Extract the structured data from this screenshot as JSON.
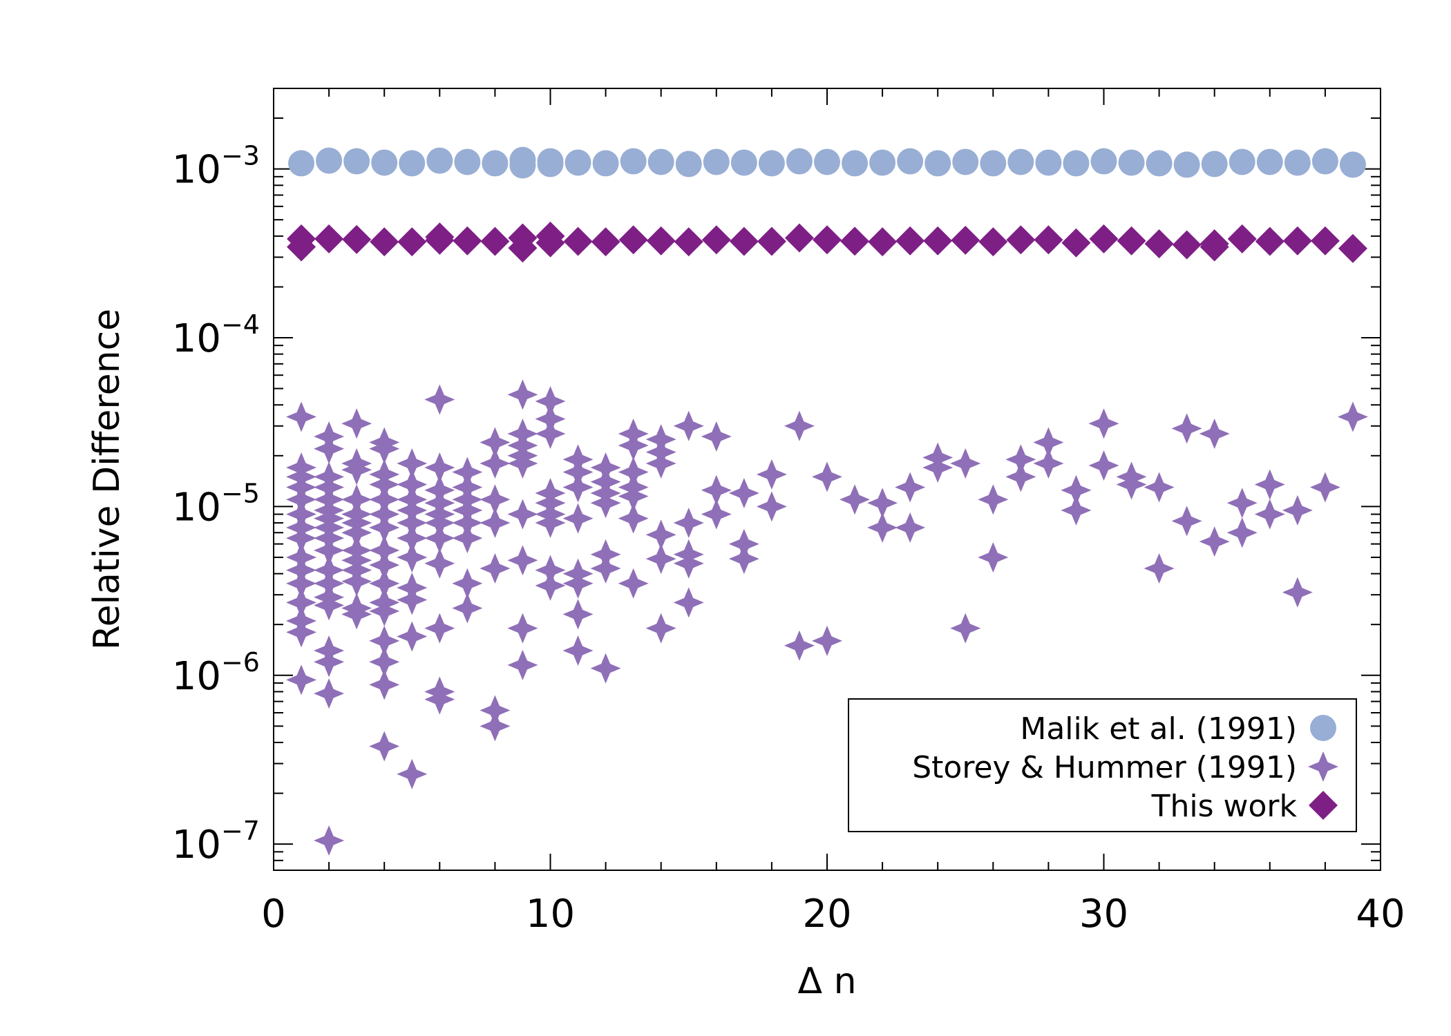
{
  "chart_data": {
    "type": "scatter",
    "title": "",
    "xlabel": "Δ n",
    "ylabel": "Relative Difference",
    "xlim": [
      0,
      40
    ],
    "ylim": [
      7e-08,
      0.003
    ],
    "yscale": "log",
    "x_ticks": [
      0,
      10,
      20,
      30,
      40
    ],
    "y_ticks": [
      {
        "value": 1e-07,
        "base": "10",
        "exp": "−7"
      },
      {
        "value": 1e-06,
        "base": "10",
        "exp": "−6"
      },
      {
        "value": 1e-05,
        "base": "10",
        "exp": "−5"
      },
      {
        "value": 0.0001,
        "base": "10",
        "exp": "−4"
      },
      {
        "value": 0.001,
        "base": "10",
        "exp": "−3"
      }
    ],
    "legend_position": "bottom-right",
    "series": [
      {
        "name": "Malik et al. (1991)",
        "marker": "circle",
        "color": "#98AED4",
        "points": [
          [
            1,
            0.00108
          ],
          [
            2,
            0.00112
          ],
          [
            3,
            0.00111
          ],
          [
            4,
            0.00109
          ],
          [
            5,
            0.00108
          ],
          [
            6,
            0.00112
          ],
          [
            7,
            0.0011
          ],
          [
            8,
            0.00108
          ],
          [
            9,
            0.00105
          ],
          [
            9,
            0.00113
          ],
          [
            10,
            0.00111
          ],
          [
            10,
            0.00107
          ],
          [
            11,
            0.00109
          ],
          [
            12,
            0.00108
          ],
          [
            13,
            0.00111
          ],
          [
            14,
            0.0011
          ],
          [
            15,
            0.00107
          ],
          [
            16,
            0.0011
          ],
          [
            17,
            0.00109
          ],
          [
            18,
            0.00108
          ],
          [
            19,
            0.00111
          ],
          [
            20,
            0.0011
          ],
          [
            21,
            0.00108
          ],
          [
            22,
            0.00109
          ],
          [
            23,
            0.00111
          ],
          [
            24,
            0.00108
          ],
          [
            25,
            0.0011
          ],
          [
            26,
            0.00108
          ],
          [
            27,
            0.0011
          ],
          [
            28,
            0.00109
          ],
          [
            29,
            0.00108
          ],
          [
            30,
            0.00111
          ],
          [
            31,
            0.00109
          ],
          [
            32,
            0.00108
          ],
          [
            33,
            0.00106
          ],
          [
            34,
            0.00107
          ],
          [
            35,
            0.0011
          ],
          [
            36,
            0.0011
          ],
          [
            37,
            0.00109
          ],
          [
            38,
            0.00111
          ],
          [
            39,
            0.00106
          ]
        ]
      },
      {
        "name": "Storey & Hummer (1991)",
        "marker": "star",
        "color": "#8F6FB7",
        "points": [
          [
            1,
            3.4e-05
          ],
          [
            1,
            1.7e-05
          ],
          [
            1,
            1.5e-05
          ],
          [
            1,
            1.3e-05
          ],
          [
            1,
            1.1e-05
          ],
          [
            1,
            9e-06
          ],
          [
            1,
            7.5e-06
          ],
          [
            1,
            6.5e-06
          ],
          [
            1,
            5e-06
          ],
          [
            1,
            4.2e-06
          ],
          [
            1,
            3.5e-06
          ],
          [
            1,
            2.7e-06
          ],
          [
            1,
            2.1e-06
          ],
          [
            1,
            1.8e-06
          ],
          [
            1,
            9.4e-07
          ],
          [
            2,
            2.6e-05
          ],
          [
            2,
            2.2e-05
          ],
          [
            2,
            1.5e-05
          ],
          [
            2,
            1.3e-05
          ],
          [
            2,
            1.1e-05
          ],
          [
            2,
            9.5e-06
          ],
          [
            2,
            8.5e-06
          ],
          [
            2,
            7.5e-06
          ],
          [
            2,
            6.5e-06
          ],
          [
            2,
            5.5e-06
          ],
          [
            2,
            4.2e-06
          ],
          [
            2,
            3.5e-06
          ],
          [
            2,
            2.9e-06
          ],
          [
            2,
            2.6e-06
          ],
          [
            2,
            1.4e-06
          ],
          [
            2,
            1.2e-06
          ],
          [
            2,
            7.8e-07
          ],
          [
            2,
            1.05e-07
          ],
          [
            3,
            3.1e-05
          ],
          [
            3,
            1.8e-05
          ],
          [
            3,
            1.65e-05
          ],
          [
            3,
            1.1e-05
          ],
          [
            3,
            9e-06
          ],
          [
            3,
            8e-06
          ],
          [
            3,
            7e-06
          ],
          [
            3,
            5.5e-06
          ],
          [
            3,
            4.8e-06
          ],
          [
            3,
            4.2e-06
          ],
          [
            3,
            3.6e-06
          ],
          [
            3,
            2.5e-06
          ],
          [
            3,
            2.3e-06
          ],
          [
            4,
            2.4e-05
          ],
          [
            4,
            2.2e-05
          ],
          [
            4,
            1.55e-05
          ],
          [
            4,
            1.35e-05
          ],
          [
            4,
            1.1e-05
          ],
          [
            4,
            9e-06
          ],
          [
            4,
            7.5e-06
          ],
          [
            4,
            5.5e-06
          ],
          [
            4,
            4.5e-06
          ],
          [
            4,
            3.5e-06
          ],
          [
            4,
            2.7e-06
          ],
          [
            4,
            2.4e-06
          ],
          [
            4,
            1.6e-06
          ],
          [
            4,
            1.2e-06
          ],
          [
            4,
            8.8e-07
          ],
          [
            4,
            3.8e-07
          ],
          [
            5,
            1.8e-05
          ],
          [
            5,
            1.35e-05
          ],
          [
            5,
            1.1e-05
          ],
          [
            5,
            9.5e-06
          ],
          [
            5,
            8e-06
          ],
          [
            5,
            6.5e-06
          ],
          [
            5,
            5e-06
          ],
          [
            5,
            3.3e-06
          ],
          [
            5,
            2.8e-06
          ],
          [
            5,
            1.7e-06
          ],
          [
            5,
            2.6e-07
          ],
          [
            6,
            4.3e-05
          ],
          [
            6,
            1.7e-05
          ],
          [
            6,
            1.25e-05
          ],
          [
            6,
            1.05e-05
          ],
          [
            6,
            9e-06
          ],
          [
            6,
            8e-06
          ],
          [
            6,
            6.5e-06
          ],
          [
            6,
            4.6e-06
          ],
          [
            6,
            1.9e-06
          ],
          [
            6,
            8e-07
          ],
          [
            6,
            7.2e-07
          ],
          [
            7,
            1.6e-05
          ],
          [
            7,
            1.3e-05
          ],
          [
            7,
            1.1e-05
          ],
          [
            7,
            9.5e-06
          ],
          [
            7,
            8e-06
          ],
          [
            7,
            6.5e-06
          ],
          [
            7,
            3.5e-06
          ],
          [
            7,
            2.5e-06
          ],
          [
            8,
            2.4e-05
          ],
          [
            8,
            1.8e-05
          ],
          [
            8,
            1.1e-05
          ],
          [
            8,
            8e-06
          ],
          [
            8,
            4.3e-06
          ],
          [
            8,
            6.2e-07
          ],
          [
            8,
            5e-07
          ],
          [
            9,
            4.6e-05
          ],
          [
            9,
            2.7e-05
          ],
          [
            9,
            2.3e-05
          ],
          [
            9,
            2e-05
          ],
          [
            9,
            1.8e-05
          ],
          [
            9,
            9e-06
          ],
          [
            9,
            4.8e-06
          ],
          [
            9,
            1.9e-06
          ],
          [
            9,
            1.15e-06
          ],
          [
            10,
            4.2e-05
          ],
          [
            10,
            3.3e-05
          ],
          [
            10,
            2.7e-05
          ],
          [
            10,
            1.2e-05
          ],
          [
            10,
            1.05e-05
          ],
          [
            10,
            9e-06
          ],
          [
            10,
            8e-06
          ],
          [
            10,
            4.2e-06
          ],
          [
            10,
            3.4e-06
          ],
          [
            11,
            1.9e-05
          ],
          [
            11,
            1.6e-05
          ],
          [
            11,
            1.3e-05
          ],
          [
            11,
            8.5e-06
          ],
          [
            11,
            4e-06
          ],
          [
            11,
            3.5e-06
          ],
          [
            11,
            2.3e-06
          ],
          [
            11,
            1.4e-06
          ],
          [
            12,
            1.7e-05
          ],
          [
            12,
            1.4e-05
          ],
          [
            12,
            1.2e-05
          ],
          [
            12,
            1.05e-05
          ],
          [
            12,
            5.2e-06
          ],
          [
            12,
            4.3e-06
          ],
          [
            12,
            1.1e-06
          ],
          [
            13,
            2.7e-05
          ],
          [
            13,
            2.3e-05
          ],
          [
            13,
            1.6e-05
          ],
          [
            13,
            1.3e-05
          ],
          [
            13,
            1.15e-05
          ],
          [
            13,
            8.5e-06
          ],
          [
            13,
            3.5e-06
          ],
          [
            14,
            2.5e-05
          ],
          [
            14,
            2.1e-05
          ],
          [
            14,
            1.8e-05
          ],
          [
            14,
            6.8e-06
          ],
          [
            14,
            4.9e-06
          ],
          [
            14,
            1.9e-06
          ],
          [
            15,
            3e-05
          ],
          [
            15,
            8e-06
          ],
          [
            15,
            5.2e-06
          ],
          [
            15,
            4.6e-06
          ],
          [
            15,
            2.7e-06
          ],
          [
            16,
            2.6e-05
          ],
          [
            16,
            1.25e-05
          ],
          [
            16,
            9e-06
          ],
          [
            17,
            1.2e-05
          ],
          [
            17,
            6e-06
          ],
          [
            17,
            4.9e-06
          ],
          [
            18,
            1.55e-05
          ],
          [
            18,
            1e-05
          ],
          [
            19,
            3e-05
          ],
          [
            19,
            1.5e-06
          ],
          [
            20,
            1.5e-05
          ],
          [
            20,
            1.6e-06
          ],
          [
            21,
            1.1e-05
          ],
          [
            22,
            1.05e-05
          ],
          [
            22,
            7.5e-06
          ],
          [
            23,
            1.3e-05
          ],
          [
            23,
            7.5e-06
          ],
          [
            24,
            1.95e-05
          ],
          [
            24,
            1.7e-05
          ],
          [
            25,
            1.8e-05
          ],
          [
            25,
            1.9e-06
          ],
          [
            26,
            1.1e-05
          ],
          [
            26,
            5e-06
          ],
          [
            27,
            1.9e-05
          ],
          [
            27,
            1.5e-05
          ],
          [
            28,
            2.4e-05
          ],
          [
            28,
            1.8e-05
          ],
          [
            29,
            1.25e-05
          ],
          [
            29,
            9.5e-06
          ],
          [
            30,
            3.1e-05
          ],
          [
            30,
            1.75e-05
          ],
          [
            31,
            1.5e-05
          ],
          [
            31,
            1.35e-05
          ],
          [
            32,
            1.3e-05
          ],
          [
            32,
            4.3e-06
          ],
          [
            33,
            2.9e-05
          ],
          [
            33,
            8.2e-06
          ],
          [
            34,
            2.7e-05
          ],
          [
            34,
            6.2e-06
          ],
          [
            35,
            1.05e-05
          ],
          [
            35,
            7e-06
          ],
          [
            36,
            1.35e-05
          ],
          [
            36,
            9e-06
          ],
          [
            37,
            9.5e-06
          ],
          [
            37,
            3.1e-06
          ],
          [
            38,
            1.3e-05
          ],
          [
            39,
            3.4e-05
          ]
        ]
      },
      {
        "name": "This work",
        "marker": "diamond",
        "color": "#7E1F86",
        "points": [
          [
            1,
            0.000385
          ],
          [
            1,
            0.000345
          ],
          [
            2,
            0.000385
          ],
          [
            3,
            0.000382
          ],
          [
            4,
            0.00037
          ],
          [
            5,
            0.00037
          ],
          [
            6,
            0.000395
          ],
          [
            6,
            0.000378
          ],
          [
            7,
            0.000375
          ],
          [
            8,
            0.000372
          ],
          [
            9,
            0.00039
          ],
          [
            9,
            0.00034
          ],
          [
            10,
            0.0004
          ],
          [
            10,
            0.000365
          ],
          [
            11,
            0.000372
          ],
          [
            12,
            0.00037
          ],
          [
            13,
            0.00038
          ],
          [
            14,
            0.000375
          ],
          [
            15,
            0.00037
          ],
          [
            16,
            0.00038
          ],
          [
            17,
            0.000372
          ],
          [
            18,
            0.000372
          ],
          [
            19,
            0.00039
          ],
          [
            20,
            0.00038
          ],
          [
            21,
            0.000373
          ],
          [
            22,
            0.00037
          ],
          [
            23,
            0.000375
          ],
          [
            24,
            0.000375
          ],
          [
            25,
            0.000378
          ],
          [
            26,
            0.00037
          ],
          [
            27,
            0.00038
          ],
          [
            28,
            0.00038
          ],
          [
            29,
            0.000365
          ],
          [
            30,
            0.000385
          ],
          [
            31,
            0.000375
          ],
          [
            32,
            0.00036
          ],
          [
            33,
            0.000355
          ],
          [
            34,
            0.00036
          ],
          [
            34,
            0.000345
          ],
          [
            35,
            0.000385
          ],
          [
            36,
            0.000372
          ],
          [
            37,
            0.000375
          ],
          [
            38,
            0.000375
          ],
          [
            39,
            0.000338
          ]
        ]
      }
    ]
  }
}
